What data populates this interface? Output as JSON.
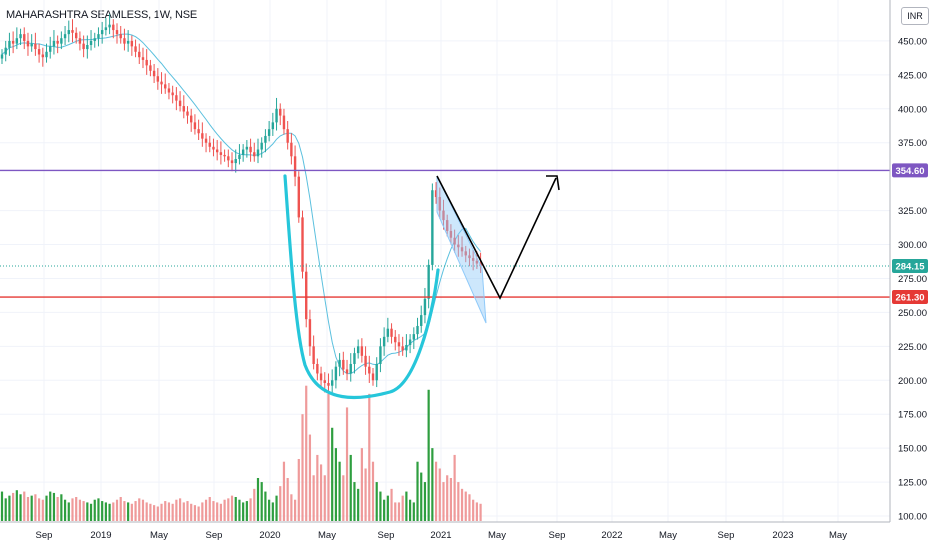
{
  "header": {
    "title": "MAHARASHTRA SEAMLESS, 1W, NSE",
    "currency": "INR"
  },
  "colors": {
    "up": "#26a69a",
    "down": "#ef5350",
    "vol_up": "#2e9e3f",
    "vol_down": "#ef9a9a",
    "sma": "#5bc0de",
    "cup": "#26c6da",
    "resistance": "#7e57c2",
    "support": "#e53935",
    "flag": "#90caf9",
    "last_price": "#26a69a",
    "grid": "#f0f3fa",
    "axis_text": "#131722"
  },
  "chart_data": {
    "type": "candlestick",
    "ylim": [
      100,
      475
    ],
    "y_ticks": [
      "450.00",
      "425.00",
      "400.00",
      "375.00",
      "325.00",
      "300.00",
      "275.00",
      "250.00",
      "225.00",
      "200.00",
      "175.00",
      "150.00",
      "125.00",
      "100.00"
    ],
    "x_ticks": [
      "Sep",
      "2019",
      "May",
      "Sep",
      "2020",
      "May",
      "Sep",
      "2021",
      "May",
      "Sep",
      "2022",
      "May",
      "Sep",
      "2023",
      "May"
    ],
    "price_labels": {
      "resistance": "354.60",
      "last": "284.15",
      "support": "261.30"
    },
    "levels": {
      "resistance": 354.6,
      "last": 284.15,
      "support": 261.3
    },
    "series": [
      {
        "name": "close",
        "values": [
          440,
          445,
          450,
          448,
          452,
          455,
          450,
          446,
          448,
          444,
          440,
          438,
          442,
          446,
          450,
          448,
          452,
          455,
          458,
          456,
          452,
          448,
          444,
          447,
          450,
          452,
          455,
          458,
          460,
          462,
          458,
          455,
          452,
          448,
          450,
          446,
          442,
          438,
          436,
          432,
          428,
          424,
          420,
          418,
          415,
          412,
          410,
          406,
          402,
          398,
          395,
          390,
          385,
          382,
          378,
          375,
          372,
          370,
          368,
          366,
          365,
          362,
          360,
          363,
          366,
          370,
          372,
          368,
          365,
          370,
          375,
          380,
          385,
          390,
          400,
          395,
          385,
          375,
          365,
          350,
          320,
          280,
          245,
          225,
          212,
          205,
          200,
          198,
          196,
          200,
          210,
          215,
          208,
          205,
          212,
          220,
          225,
          218,
          210,
          205,
          200,
          212,
          225,
          232,
          238,
          232,
          228,
          225,
          222,
          226,
          230,
          234,
          240,
          248,
          260,
          285,
          340,
          335,
          325,
          318,
          310,
          305,
          300,
          298,
          295,
          292,
          290,
          288,
          286,
          284
        ]
      },
      {
        "name": "volume",
        "values": [
          118,
          113,
          115,
          117,
          119,
          116,
          118,
          114,
          115,
          116,
          113,
          112,
          115,
          118,
          117,
          114,
          116,
          112,
          110,
          113,
          114,
          112,
          111,
          110,
          109,
          112,
          113,
          111,
          110,
          109,
          110,
          112,
          114,
          111,
          110,
          109,
          111,
          113,
          112,
          110,
          109,
          108,
          107,
          109,
          111,
          110,
          109,
          112,
          113,
          110,
          111,
          109,
          108,
          107,
          110,
          112,
          114,
          111,
          110,
          109,
          112,
          113,
          115,
          114,
          112,
          110,
          111,
          113,
          120,
          128,
          125,
          118,
          112,
          110,
          115,
          122,
          140,
          128,
          116,
          112,
          142,
          175,
          196,
          160,
          130,
          145,
          138,
          130,
          190,
          165,
          150,
          140,
          130,
          180,
          145,
          125,
          120,
          150,
          135,
          190,
          140,
          125,
          118,
          112,
          115,
          120,
          110,
          110,
          115,
          118,
          112,
          110,
          140,
          132,
          125,
          193,
          150,
          140,
          135,
          125,
          130,
          128,
          145,
          125,
          120,
          118,
          116,
          112,
          110,
          109
        ]
      }
    ],
    "annotations": [
      "cup",
      "handle-flag",
      "projection-arrow"
    ]
  }
}
